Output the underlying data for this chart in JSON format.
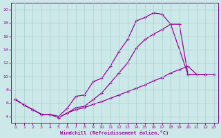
{
  "xlabel": "Windchill (Refroidissement éolien,°C)",
  "bg_color": "#cce8e8",
  "grid_color": "#a8d0d0",
  "line_color": "#990099",
  "xlim": [
    -0.5,
    23.5
  ],
  "ylim": [
    3.0,
    21.0
  ],
  "xticks": [
    0,
    1,
    2,
    3,
    4,
    5,
    6,
    7,
    8,
    9,
    10,
    11,
    12,
    13,
    14,
    15,
    16,
    17,
    18,
    19,
    20,
    21,
    22,
    23
  ],
  "yticks": [
    4,
    6,
    8,
    10,
    12,
    14,
    16,
    18,
    20
  ],
  "line1_x": [
    0,
    1,
    2,
    3,
    4,
    5,
    6,
    7,
    8,
    9,
    10,
    11,
    12,
    13,
    14,
    15,
    16,
    17,
    18,
    19,
    20,
    22
  ],
  "line1_y": [
    6.5,
    5.7,
    5.0,
    4.3,
    4.3,
    4.0,
    5.2,
    7.0,
    7.2,
    9.2,
    9.7,
    11.5,
    13.7,
    15.5,
    18.3,
    18.8,
    19.5,
    19.3,
    17.8,
    17.8,
    10.3,
    10.3
  ],
  "line2_x": [
    0,
    1,
    2,
    3,
    4,
    5,
    6,
    7,
    8,
    9,
    10,
    11,
    12,
    13,
    14,
    15,
    16,
    17,
    18,
    20,
    22
  ],
  "line2_y": [
    6.5,
    5.7,
    5.0,
    4.3,
    4.3,
    3.8,
    4.5,
    5.3,
    5.5,
    6.5,
    7.5,
    9.0,
    10.5,
    12.0,
    14.2,
    15.5,
    16.3,
    17.0,
    17.8,
    10.3,
    10.3
  ],
  "line3_x": [
    0,
    1,
    2,
    3,
    4,
    5,
    6,
    7,
    8,
    9,
    10,
    11,
    12,
    13,
    14,
    15,
    16,
    17,
    18,
    19,
    20,
    21,
    22,
    23
  ],
  "line3_y": [
    6.5,
    5.7,
    5.0,
    4.3,
    4.3,
    3.8,
    4.5,
    5.0,
    5.3,
    5.8,
    6.2,
    6.7,
    7.2,
    7.7,
    8.2,
    8.7,
    9.3,
    9.8,
    10.5,
    11.0,
    11.5,
    10.3,
    10.3,
    10.3
  ]
}
